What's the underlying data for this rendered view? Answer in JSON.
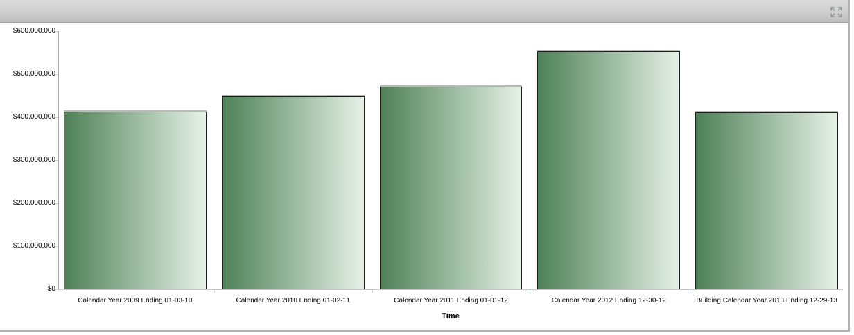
{
  "header": {
    "expand_icon": "expand-arrows"
  },
  "chart_data": {
    "type": "bar",
    "title": "",
    "xlabel": "Time",
    "ylabel": "",
    "categories": [
      "Calendar Year 2009 Ending 01-03-10",
      "Calendar Year 2010 Ending 01-02-11",
      "Calendar Year 2011 Ending 01-01-12",
      "Calendar Year 2012 Ending 12-30-12",
      "Building Calendar Year 2013 Ending 12-29-13"
    ],
    "values": [
      413000000,
      448000000,
      471000000,
      553000000,
      411000000
    ],
    "ylim": [
      0,
      600000000
    ],
    "ytick_interval": 100000000,
    "ytick_labels_top_to_bottom": [
      "$600,000,000",
      "$500,000,000",
      "$400,000,000",
      "$300,000,000",
      "$200,000,000",
      "$100,000,000",
      "$0"
    ],
    "grid": false,
    "legend": "none",
    "colors": {
      "bar_gradient_from": "#4e8157",
      "bar_gradient_to": "#e6f1e7",
      "bar_border": "#1f1f1f",
      "axis_line": "#ababab",
      "tick_mark": "#b9d2ee",
      "header_gradient_from": "#dadada",
      "header_gradient_to": "#bdbdbd"
    }
  }
}
